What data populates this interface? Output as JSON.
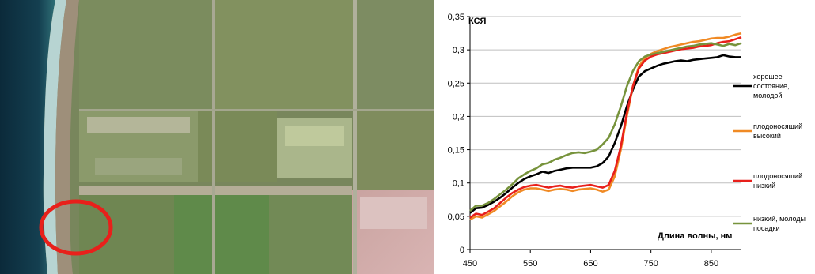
{
  "satellite_image": {
    "highlight_color": "#e8201b"
  },
  "chart_data": {
    "type": "line",
    "title": "",
    "ylabel": "КСЯ",
    "xlabel": "Длина волны, нм",
    "xlim": [
      450,
      900
    ],
    "ylim": [
      0,
      0.35
    ],
    "x_ticks": [
      450,
      550,
      650,
      750,
      850
    ],
    "y_ticks": [
      0,
      0.05,
      0.1,
      0.15,
      0.2,
      0.25,
      0.3,
      0.35
    ],
    "x_tick_labels": [
      "450",
      "550",
      "650",
      "750",
      "850"
    ],
    "y_tick_labels": [
      "0",
      "0,05",
      "0,1",
      "0,15",
      "0,2",
      "0,25",
      "0,3",
      "0,35"
    ],
    "grid": "horizontal",
    "legend_position": "right",
    "series": [
      {
        "name": "хорошее состояние, молодой",
        "legend_lines": [
          "хорошее",
          "состояние,",
          "молодой"
        ],
        "color": "#000000",
        "points": [
          [
            450,
            0.055
          ],
          [
            460,
            0.062
          ],
          [
            470,
            0.063
          ],
          [
            480,
            0.067
          ],
          [
            490,
            0.072
          ],
          [
            500,
            0.078
          ],
          [
            510,
            0.085
          ],
          [
            520,
            0.093
          ],
          [
            530,
            0.1
          ],
          [
            540,
            0.106
          ],
          [
            550,
            0.11
          ],
          [
            560,
            0.113
          ],
          [
            570,
            0.117
          ],
          [
            580,
            0.115
          ],
          [
            590,
            0.118
          ],
          [
            600,
            0.12
          ],
          [
            610,
            0.122
          ],
          [
            620,
            0.123
          ],
          [
            630,
            0.123
          ],
          [
            640,
            0.123
          ],
          [
            650,
            0.123
          ],
          [
            660,
            0.125
          ],
          [
            670,
            0.13
          ],
          [
            680,
            0.14
          ],
          [
            690,
            0.16
          ],
          [
            700,
            0.185
          ],
          [
            710,
            0.215
          ],
          [
            720,
            0.24
          ],
          [
            730,
            0.26
          ],
          [
            740,
            0.268
          ],
          [
            750,
            0.272
          ],
          [
            760,
            0.276
          ],
          [
            770,
            0.279
          ],
          [
            780,
            0.281
          ],
          [
            790,
            0.283
          ],
          [
            800,
            0.284
          ],
          [
            810,
            0.283
          ],
          [
            820,
            0.285
          ],
          [
            830,
            0.286
          ],
          [
            840,
            0.287
          ],
          [
            850,
            0.288
          ],
          [
            860,
            0.289
          ],
          [
            870,
            0.292
          ],
          [
            880,
            0.29
          ],
          [
            890,
            0.289
          ],
          [
            900,
            0.289
          ]
        ]
      },
      {
        "name": "плодоносящий высокий",
        "legend_lines": [
          "плодоносящий",
          "высокий"
        ],
        "color": "#f08a24",
        "points": [
          [
            450,
            0.045
          ],
          [
            460,
            0.05
          ],
          [
            470,
            0.048
          ],
          [
            480,
            0.053
          ],
          [
            490,
            0.058
          ],
          [
            500,
            0.065
          ],
          [
            510,
            0.072
          ],
          [
            520,
            0.08
          ],
          [
            530,
            0.086
          ],
          [
            540,
            0.09
          ],
          [
            550,
            0.092
          ],
          [
            560,
            0.092
          ],
          [
            570,
            0.09
          ],
          [
            580,
            0.088
          ],
          [
            590,
            0.09
          ],
          [
            600,
            0.091
          ],
          [
            610,
            0.09
          ],
          [
            620,
            0.088
          ],
          [
            630,
            0.09
          ],
          [
            640,
            0.091
          ],
          [
            650,
            0.092
          ],
          [
            660,
            0.09
          ],
          [
            670,
            0.087
          ],
          [
            680,
            0.09
          ],
          [
            690,
            0.11
          ],
          [
            700,
            0.15
          ],
          [
            710,
            0.2
          ],
          [
            720,
            0.245
          ],
          [
            730,
            0.275
          ],
          [
            740,
            0.288
          ],
          [
            750,
            0.294
          ],
          [
            760,
            0.298
          ],
          [
            770,
            0.301
          ],
          [
            780,
            0.304
          ],
          [
            790,
            0.306
          ],
          [
            800,
            0.308
          ],
          [
            810,
            0.31
          ],
          [
            820,
            0.312
          ],
          [
            830,
            0.313
          ],
          [
            840,
            0.315
          ],
          [
            850,
            0.317
          ],
          [
            860,
            0.318
          ],
          [
            870,
            0.318
          ],
          [
            880,
            0.32
          ],
          [
            890,
            0.323
          ],
          [
            900,
            0.325
          ]
        ]
      },
      {
        "name": "плодоносящий низкий",
        "legend_lines": [
          "плодоносящий",
          "низкий"
        ],
        "color": "#e8201b",
        "points": [
          [
            450,
            0.048
          ],
          [
            460,
            0.054
          ],
          [
            470,
            0.052
          ],
          [
            480,
            0.057
          ],
          [
            490,
            0.062
          ],
          [
            500,
            0.07
          ],
          [
            510,
            0.078
          ],
          [
            520,
            0.085
          ],
          [
            530,
            0.09
          ],
          [
            540,
            0.094
          ],
          [
            550,
            0.096
          ],
          [
            560,
            0.097
          ],
          [
            570,
            0.095
          ],
          [
            580,
            0.093
          ],
          [
            590,
            0.095
          ],
          [
            600,
            0.096
          ],
          [
            610,
            0.094
          ],
          [
            620,
            0.093
          ],
          [
            630,
            0.095
          ],
          [
            640,
            0.096
          ],
          [
            650,
            0.097
          ],
          [
            660,
            0.095
          ],
          [
            670,
            0.093
          ],
          [
            680,
            0.097
          ],
          [
            690,
            0.118
          ],
          [
            700,
            0.155
          ],
          [
            710,
            0.205
          ],
          [
            720,
            0.245
          ],
          [
            730,
            0.272
          ],
          [
            740,
            0.284
          ],
          [
            750,
            0.29
          ],
          [
            760,
            0.293
          ],
          [
            770,
            0.295
          ],
          [
            780,
            0.297
          ],
          [
            790,
            0.299
          ],
          [
            800,
            0.301
          ],
          [
            810,
            0.302
          ],
          [
            820,
            0.303
          ],
          [
            830,
            0.305
          ],
          [
            840,
            0.306
          ],
          [
            850,
            0.307
          ],
          [
            860,
            0.31
          ],
          [
            870,
            0.312
          ],
          [
            880,
            0.313
          ],
          [
            890,
            0.316
          ],
          [
            900,
            0.319
          ]
        ]
      },
      {
        "name": "низкий, молодые посадки",
        "legend_lines": [
          "низкий, молоды",
          "посадки"
        ],
        "color": "#77933c",
        "points": [
          [
            450,
            0.058
          ],
          [
            460,
            0.066
          ],
          [
            470,
            0.066
          ],
          [
            480,
            0.07
          ],
          [
            490,
            0.076
          ],
          [
            500,
            0.083
          ],
          [
            510,
            0.09
          ],
          [
            520,
            0.098
          ],
          [
            530,
            0.107
          ],
          [
            540,
            0.113
          ],
          [
            550,
            0.118
          ],
          [
            560,
            0.122
          ],
          [
            570,
            0.128
          ],
          [
            580,
            0.13
          ],
          [
            590,
            0.135
          ],
          [
            600,
            0.138
          ],
          [
            610,
            0.142
          ],
          [
            620,
            0.145
          ],
          [
            630,
            0.146
          ],
          [
            640,
            0.145
          ],
          [
            650,
            0.147
          ],
          [
            660,
            0.15
          ],
          [
            670,
            0.158
          ],
          [
            680,
            0.168
          ],
          [
            690,
            0.188
          ],
          [
            700,
            0.215
          ],
          [
            710,
            0.245
          ],
          [
            720,
            0.268
          ],
          [
            730,
            0.283
          ],
          [
            740,
            0.29
          ],
          [
            750,
            0.293
          ],
          [
            760,
            0.295
          ],
          [
            770,
            0.297
          ],
          [
            780,
            0.299
          ],
          [
            790,
            0.301
          ],
          [
            800,
            0.303
          ],
          [
            810,
            0.305
          ],
          [
            820,
            0.306
          ],
          [
            830,
            0.308
          ],
          [
            840,
            0.309
          ],
          [
            850,
            0.31
          ],
          [
            860,
            0.308
          ],
          [
            870,
            0.306
          ],
          [
            880,
            0.309
          ],
          [
            890,
            0.307
          ],
          [
            900,
            0.31
          ]
        ]
      }
    ]
  }
}
